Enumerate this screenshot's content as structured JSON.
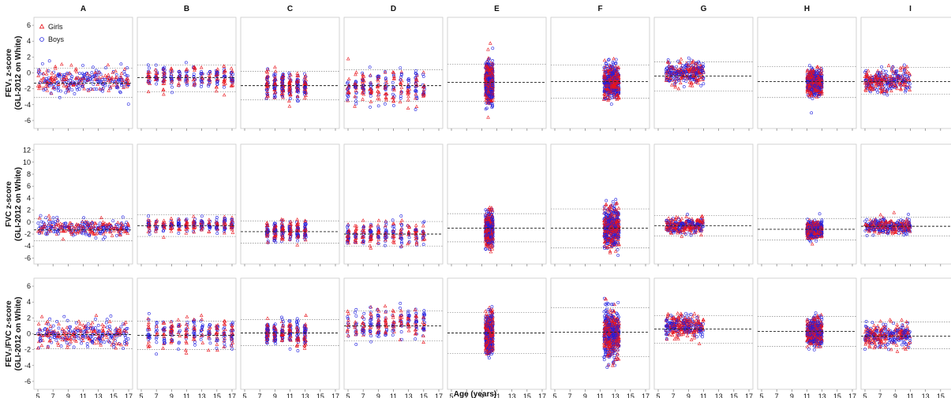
{
  "chart_data": {
    "type": "scatter",
    "columns": [
      "A",
      "B",
      "C",
      "D",
      "E",
      "F",
      "G",
      "H",
      "I"
    ],
    "xlabel": "Age (years)",
    "xticks": [
      "5",
      "7",
      "9",
      "11",
      "13",
      "15",
      "17"
    ],
    "xlim": [
      5,
      17
    ],
    "rows": [
      {
        "ylabel_line1": "FEV₁ z-score",
        "ylabel_line2": "(GLI-2012 on White)",
        "ylim": [
          -7,
          7
        ],
        "yticks": [
          "6",
          "4",
          "2",
          "0",
          "-2",
          "-4",
          "-6"
        ]
      },
      {
        "ylabel_line1": "FVC z-score",
        "ylabel_line2": "(GLI-2012 on White)",
        "ylim": [
          -7,
          13
        ],
        "yticks": [
          "12",
          "10",
          "8",
          "6",
          "4",
          "2",
          "0",
          "-2",
          "-4",
          "-6"
        ]
      },
      {
        "ylabel_line1": "FEV₁/FVC z-score",
        "ylabel_line2": "(GLI-2012 on White)",
        "ylim": [
          -7,
          7
        ],
        "yticks": [
          "6",
          "4",
          "2",
          "0",
          "-2",
          "-4",
          "-6"
        ]
      }
    ],
    "legend": {
      "placement": "top-left",
      "entries": [
        {
          "label": "Girls",
          "marker": "triangle",
          "color": "#e8141c"
        },
        {
          "label": "Boys",
          "marker": "circle",
          "color": "#1f1fe0"
        }
      ]
    },
    "panels": [
      [
        {
          "column": "A",
          "mean": -1.3,
          "lower": -3.1,
          "upper": 0.6,
          "age_range": [
            5,
            17
          ],
          "center": -1.0,
          "spread": 0.8
        },
        {
          "column": "B",
          "mean": -0.6,
          "lower": -2.4,
          "upper": 1.0,
          "age_range": [
            6,
            17
          ],
          "center": -0.6,
          "spread": 0.7,
          "discrete": true
        },
        {
          "column": "C",
          "mean": -1.6,
          "lower": -3.4,
          "upper": 0.2,
          "age_range": [
            8,
            13
          ],
          "center": -1.5,
          "spread": 0.8,
          "discrete": true
        },
        {
          "column": "D",
          "mean": -1.6,
          "lower": -3.6,
          "upper": 0.4,
          "age_range": [
            5,
            15
          ],
          "center": -1.8,
          "spread": 1.0,
          "discrete": true
        },
        {
          "column": "E",
          "mean": -1.2,
          "lower": -3.6,
          "upper": 1.1,
          "age_range": [
            9.5,
            10.5
          ],
          "center": -1.2,
          "spread": 1.3
        },
        {
          "column": "F",
          "mean": -1.1,
          "lower": -3.2,
          "upper": 1.0,
          "age_range": [
            11.5,
            13.5
          ],
          "center": -1.1,
          "spread": 1.0
        },
        {
          "column": "G",
          "mean": -0.4,
          "lower": -2.3,
          "upper": 1.4,
          "age_range": [
            6,
            11
          ],
          "center": -0.1,
          "spread": 0.7
        },
        {
          "column": "H",
          "mean": -1.1,
          "lower": -3.1,
          "upper": 0.8,
          "age_range": [
            11,
            13
          ],
          "center": -1.2,
          "spread": 0.8
        },
        {
          "column": "I",
          "mean": -1.1,
          "lower": -2.7,
          "upper": 0.7,
          "age_range": [
            5,
            11
          ],
          "center": -1.0,
          "spread": 0.7
        }
      ],
      [
        {
          "column": "A",
          "mean": -1.3,
          "lower": -3.1,
          "upper": 0.6,
          "age_range": [
            5,
            17
          ],
          "center": -1.0,
          "spread": 0.7
        },
        {
          "column": "B",
          "mean": -0.6,
          "lower": -2.4,
          "upper": 1.2,
          "age_range": [
            6,
            17
          ],
          "center": -0.5,
          "spread": 0.6,
          "discrete": true
        },
        {
          "column": "C",
          "mean": -1.6,
          "lower": -3.5,
          "upper": 0.2,
          "age_range": [
            8,
            13
          ],
          "center": -1.5,
          "spread": 0.8,
          "discrete": true
        },
        {
          "column": "D",
          "mean": -2.0,
          "lower": -4.0,
          "upper": 0.1,
          "age_range": [
            5,
            15
          ],
          "center": -2.0,
          "spread": 1.0,
          "discrete": true
        },
        {
          "column": "E",
          "mean": -1.0,
          "lower": -3.3,
          "upper": 1.4,
          "age_range": [
            9.5,
            10.5
          ],
          "center": -1.2,
          "spread": 1.3
        },
        {
          "column": "F",
          "mean": -1.0,
          "lower": -4.3,
          "upper": 2.2,
          "age_range": [
            11.5,
            13.5
          ],
          "center": -0.9,
          "spread": 1.6
        },
        {
          "column": "G",
          "mean": -0.6,
          "lower": -2.3,
          "upper": 1.1,
          "age_range": [
            6,
            11
          ],
          "center": -0.6,
          "spread": 0.6
        },
        {
          "column": "H",
          "mean": -1.2,
          "lower": -3.0,
          "upper": 0.6,
          "age_range": [
            11,
            13
          ],
          "center": -1.3,
          "spread": 0.7
        },
        {
          "column": "I",
          "mean": -0.7,
          "lower": -2.3,
          "upper": 0.8,
          "age_range": [
            5,
            11
          ],
          "center": -0.7,
          "spread": 0.6
        }
      ],
      [
        {
          "column": "A",
          "mean": -0.1,
          "lower": -1.9,
          "upper": 1.6,
          "age_range": [
            5,
            17
          ],
          "center": 0.0,
          "spread": 0.8
        },
        {
          "column": "B",
          "mean": -0.2,
          "lower": -2.0,
          "upper": 1.6,
          "age_range": [
            6,
            17
          ],
          "center": 0.0,
          "spread": 0.9,
          "discrete": true
        },
        {
          "column": "C",
          "mean": 0.1,
          "lower": -1.5,
          "upper": 1.8,
          "age_range": [
            8,
            13
          ],
          "center": 0.1,
          "spread": 0.8,
          "discrete": true
        },
        {
          "column": "D",
          "mean": 1.0,
          "lower": -0.9,
          "upper": 2.9,
          "age_range": [
            5,
            15
          ],
          "center": 1.3,
          "spread": 0.9,
          "discrete": true
        },
        {
          "column": "E",
          "mean": 0.1,
          "lower": -2.5,
          "upper": 2.7,
          "age_range": [
            9.5,
            10.5
          ],
          "center": 0.0,
          "spread": 1.2
        },
        {
          "column": "F",
          "mean": 0.2,
          "lower": -2.9,
          "upper": 3.3,
          "age_range": [
            11.5,
            13.5
          ],
          "center": 0.0,
          "spread": 1.5
        },
        {
          "column": "G",
          "mean": 0.6,
          "lower": -1.2,
          "upper": 2.3,
          "age_range": [
            6,
            11
          ],
          "center": 0.9,
          "spread": 0.7
        },
        {
          "column": "H",
          "mean": 0.3,
          "lower": -1.6,
          "upper": 2.2,
          "age_range": [
            11,
            13
          ],
          "center": 0.2,
          "spread": 0.8
        },
        {
          "column": "I",
          "mean": -0.3,
          "lower": -1.9,
          "upper": 1.5,
          "age_range": [
            5,
            11
          ],
          "center": -0.2,
          "spread": 0.7
        }
      ]
    ]
  }
}
